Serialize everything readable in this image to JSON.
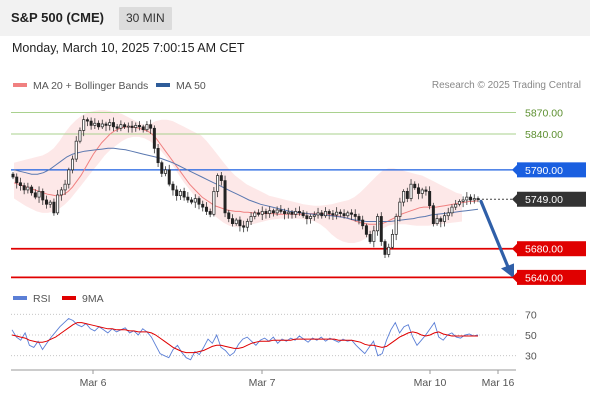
{
  "header": {
    "title": "S&P 500 (CME)",
    "interval": "30 MIN"
  },
  "timestamp": "Monday, March 10, 2025 7:00:15 AM CET",
  "legend": {
    "ma_bollinger": {
      "label": "MA 20 + Bollinger Bands",
      "color": "#f08080"
    },
    "ma50": {
      "label": "MA 50",
      "color": "#2e5c99"
    }
  },
  "credit": "Research © 2025 Trading Central",
  "rsi_legend": {
    "rsi": {
      "label": "RSI",
      "color": "#5b7fd6"
    },
    "ma9": {
      "label": "9MA",
      "color": "#e00000"
    }
  },
  "chart_data": {
    "type": "candlestick",
    "x_ticks": [
      "Mar 6",
      "Mar 7",
      "Mar 10",
      "Mar 16"
    ],
    "levels": [
      {
        "value": 5870.0,
        "label": "5870.00",
        "kind": "resistance-light",
        "color": "#a9d18e"
      },
      {
        "value": 5840.0,
        "label": "5840.00",
        "kind": "resistance-light",
        "color": "#a9d18e"
      },
      {
        "value": 5790.0,
        "label": "5790.00",
        "kind": "resistance",
        "color": "#1a5fe0"
      },
      {
        "value": 5749.0,
        "label": "5749.00",
        "kind": "last-price",
        "color": "#333333"
      },
      {
        "value": 5680.0,
        "label": "5680.00",
        "kind": "support",
        "color": "#e00000"
      },
      {
        "value": 5640.0,
        "label": "5640.00",
        "kind": "support",
        "color": "#e00000"
      }
    ],
    "price_range": [
      5628,
      5893
    ],
    "close_series": [
      5780,
      5772,
      5768,
      5762,
      5766,
      5758,
      5752,
      5760,
      5748,
      5742,
      5745,
      5730,
      5755,
      5762,
      5770,
      5790,
      5805,
      5830,
      5845,
      5860,
      5858,
      5852,
      5855,
      5850,
      5854,
      5852,
      5856,
      5850,
      5848,
      5853,
      5850,
      5851,
      5849,
      5852,
      5850,
      5846,
      5853,
      5848,
      5820,
      5800,
      5785,
      5790,
      5770,
      5762,
      5754,
      5760,
      5752,
      5748,
      5745,
      5750,
      5742,
      5738,
      5732,
      5728,
      5760,
      5782,
      5775,
      5730,
      5722,
      5715,
      5720,
      5712,
      5710,
      5718,
      5725,
      5730,
      5728,
      5732,
      5729,
      5733,
      5730,
      5734,
      5732,
      5729,
      5731,
      5728,
      5732,
      5730,
      5726,
      5722,
      5725,
      5727,
      5730,
      5726,
      5732,
      5729,
      5727,
      5731,
      5729,
      5726,
      5730,
      5728,
      5725,
      5720,
      5712,
      5700,
      5690,
      5705,
      5725,
      5690,
      5672,
      5682,
      5700,
      5725,
      5745,
      5760,
      5750,
      5770,
      5765,
      5757,
      5762,
      5760,
      5740,
      5715,
      5722,
      5718,
      5726,
      5730,
      5738,
      5742,
      5746,
      5748,
      5752,
      5748,
      5750,
      5749
    ],
    "ma20_series": [
      5772,
      5770,
      5768,
      5766,
      5764,
      5762,
      5760,
      5758,
      5756,
      5755,
      5754,
      5754,
      5756,
      5760,
      5766,
      5774,
      5782,
      5792,
      5802,
      5812,
      5820,
      5828,
      5834,
      5840,
      5844,
      5847,
      5849,
      5850,
      5850,
      5849,
      5848,
      5846,
      5844,
      5840,
      5834,
      5826,
      5818,
      5810,
      5802,
      5794,
      5786,
      5778,
      5770,
      5764,
      5758,
      5752,
      5748,
      5744,
      5740,
      5738,
      5736,
      5734,
      5733,
      5732,
      5732,
      5731,
      5731,
      5730,
      5730,
      5730,
      5729,
      5729,
      5729,
      5728,
      5728,
      5728,
      5728,
      5728,
      5728,
      5728,
      5729,
      5729,
      5729,
      5729,
      5729,
      5728,
      5727,
      5726,
      5725,
      5724,
      5722,
      5720,
      5718,
      5716,
      5715,
      5714,
      5714,
      5714,
      5715,
      5717,
      5720,
      5723,
      5726,
      5729,
      5731,
      5733,
      5735,
      5737,
      5738,
      5738,
      5738,
      5738,
      5739,
      5740,
      5741,
      5742,
      5743,
      5744,
      5745,
      5746,
      5746,
      5747
    ],
    "bb_upper": [
      5800,
      5802,
      5804,
      5806,
      5808,
      5810,
      5814,
      5820,
      5830,
      5842,
      5852,
      5860,
      5866,
      5870,
      5872,
      5873,
      5873,
      5872,
      5870,
      5868,
      5864,
      5860,
      5856,
      5852,
      5854,
      5858,
      5860,
      5860,
      5858,
      5854,
      5850,
      5846,
      5842,
      5838,
      5830,
      5820,
      5810,
      5800,
      5790,
      5782,
      5776,
      5770,
      5766,
      5762,
      5758,
      5754,
      5752,
      5750,
      5748,
      5746,
      5744,
      5742,
      5741,
      5740,
      5740,
      5741,
      5742,
      5744,
      5746,
      5748,
      5752,
      5758,
      5766,
      5774,
      5782,
      5789,
      5792,
      5792,
      5790,
      5788,
      5786,
      5784,
      5782,
      5778,
      5774,
      5770,
      5766,
      5762,
      5758,
      5756
    ],
    "bb_lower": [
      5750,
      5745,
      5740,
      5736,
      5732,
      5730,
      5730,
      5732,
      5736,
      5742,
      5750,
      5760,
      5770,
      5780,
      5790,
      5800,
      5810,
      5818,
      5824,
      5830,
      5834,
      5836,
      5836,
      5834,
      5830,
      5824,
      5816,
      5806,
      5796,
      5784,
      5772,
      5762,
      5752,
      5744,
      5736,
      5728,
      5722,
      5716,
      5712,
      5710,
      5710,
      5712,
      5714,
      5716,
      5718,
      5720,
      5721,
      5722,
      5722,
      5722,
      5722,
      5721,
      5720,
      5718,
      5714,
      5708,
      5700,
      5694,
      5690,
      5688,
      5688,
      5690,
      5694,
      5700,
      5704,
      5708,
      5712,
      5714,
      5714,
      5714,
      5713,
      5712,
      5712,
      5712,
      5713,
      5714,
      5715,
      5716,
      5717,
      5718
    ],
    "ma50_series": [
      5790,
      5788,
      5786,
      5784,
      5784,
      5786,
      5790,
      5796,
      5802,
      5808,
      5812,
      5814,
      5816,
      5817,
      5818,
      5819,
      5820,
      5820,
      5819,
      5818,
      5816,
      5814,
      5812,
      5810,
      5808,
      5806,
      5803,
      5800,
      5796,
      5792,
      5788,
      5784,
      5780,
      5776,
      5772,
      5768,
      5764,
      5760,
      5756,
      5752,
      5748,
      5745,
      5742,
      5740,
      5738,
      5736,
      5734,
      5732,
      5731,
      5730,
      5729,
      5728,
      5728,
      5727,
      5726,
      5725,
      5724,
      5722,
      5720,
      5719,
      5718,
      5718,
      5718,
      5718,
      5718,
      5719,
      5720,
      5721,
      5722,
      5724,
      5725,
      5727,
      5728,
      5729,
      5730,
      5731,
      5732,
      5733,
      5734,
      5735
    ],
    "rsi_series": [
      55,
      48,
      45,
      52,
      40,
      38,
      44,
      36,
      42,
      48,
      53,
      58,
      62,
      66,
      64,
      60,
      58,
      61,
      56,
      54,
      58,
      55,
      52,
      56,
      53,
      55,
      57,
      52,
      54,
      50,
      56,
      53,
      48,
      40,
      32,
      30,
      28,
      36,
      40,
      33,
      28,
      26,
      34,
      31,
      38,
      46,
      42,
      50,
      38,
      35,
      30,
      33,
      41,
      46,
      48,
      44,
      40,
      45,
      47,
      44,
      48,
      42,
      46,
      44,
      47,
      45,
      49,
      46,
      43,
      47,
      45,
      48,
      44,
      47,
      45,
      43,
      46,
      44,
      45,
      40,
      36,
      32,
      38,
      44,
      30,
      32,
      45,
      55,
      62,
      52,
      58,
      60,
      48,
      40,
      45,
      50,
      56,
      62,
      48,
      45,
      50,
      52,
      48,
      47,
      50,
      51,
      49,
      50
    ],
    "rsi_ma9_series": [
      50,
      49,
      48,
      47,
      45,
      44,
      43,
      43,
      44,
      46,
      48,
      51,
      54,
      57,
      60,
      62,
      62,
      61,
      60,
      59,
      58,
      57,
      56,
      56,
      55,
      55,
      55,
      54,
      54,
      53,
      53,
      53,
      52,
      50,
      47,
      44,
      41,
      38,
      36,
      34,
      33,
      33,
      33,
      34,
      35,
      37,
      39,
      40,
      40,
      39,
      38,
      37,
      37,
      38,
      40,
      42,
      43,
      44,
      44,
      44,
      45,
      45,
      45,
      45,
      45,
      46,
      46,
      46,
      46,
      46,
      46,
      46,
      46,
      46,
      46,
      45,
      45,
      45,
      45,
      44,
      43,
      41,
      40,
      40,
      39,
      38,
      39,
      42,
      45,
      48,
      50,
      52,
      53,
      52,
      50,
      49,
      50,
      52,
      53,
      51,
      50,
      49,
      49,
      49,
      49,
      49,
      49,
      49
    ],
    "rsi_levels": [
      70,
      50,
      30
    ],
    "rsi_range": [
      20,
      80
    ],
    "forecast_arrow": {
      "from": 5746,
      "to": 5640
    }
  }
}
